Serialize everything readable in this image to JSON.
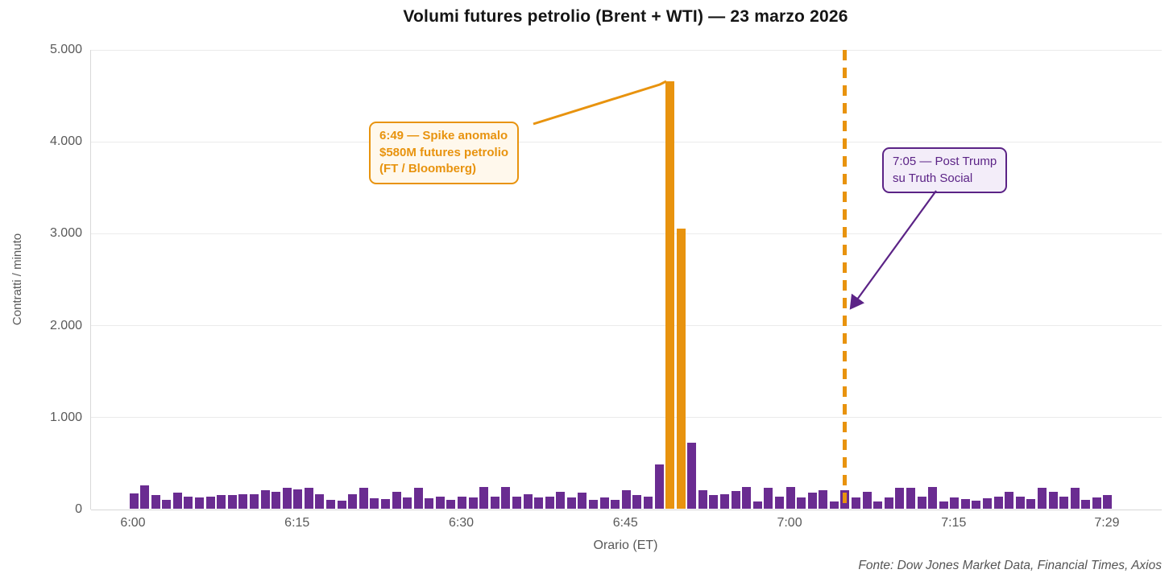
{
  "source_note": "Fonte: Dow Jones Market Data, Financial Times, Axios",
  "colors": {
    "bar_purple": "#6A2C91",
    "accent_orange": "#E8930E",
    "annotation_purple": "#5B2386",
    "annotation_orange_bg": "#FFF8EC",
    "annotation_purple_bg": "#F3EDF9",
    "axis_text": "#595959",
    "title_text": "#151515"
  },
  "annotations": {
    "spike": {
      "lines": [
        "6:49 — Spike anomalo",
        "$580M futures petrolio",
        "(FT / Bloomberg)"
      ],
      "color": "#E8930E"
    },
    "trump_post": {
      "lines": [
        "7:05 — Post Trump",
        "su Truth Social"
      ],
      "color": "#5B2386"
    }
  },
  "chart_data": {
    "type": "bar",
    "title": "Volumi futures petrolio (Brent + WTI) — 23 marzo 2026",
    "xlabel": "Orario (ET)",
    "ylabel": "Contratti / minuto",
    "ylim": [
      0,
      5000
    ],
    "grid": true,
    "legend": "none",
    "x_unit": "minutes from 6:00 ET",
    "y_ticks": [
      {
        "value": 5000,
        "label": "5.000"
      },
      {
        "value": 4000,
        "label": "4.000"
      },
      {
        "value": 3000,
        "label": "3.000"
      },
      {
        "value": 2000,
        "label": "2.000"
      },
      {
        "value": 1000,
        "label": "1.000"
      },
      {
        "value": 0,
        "label": "0"
      }
    ],
    "x_ticks": [
      {
        "minute": 0,
        "label": "6:00"
      },
      {
        "minute": 15,
        "label": "6:15"
      },
      {
        "minute": 30,
        "label": "6:30"
      },
      {
        "minute": 45,
        "label": "6:45"
      },
      {
        "minute": 60,
        "label": "7:00"
      },
      {
        "minute": 75,
        "label": "7:15"
      },
      {
        "minute": 89,
        "label": "7:29"
      }
    ],
    "series": [
      {
        "name": "Volumi futures petrolio (contratti/minuto)",
        "values": [
          170,
          250,
          150,
          95,
          175,
          135,
          120,
          135,
          150,
          150,
          160,
          155,
          200,
          180,
          230,
          210,
          225,
          160,
          95,
          90,
          160,
          230,
          115,
          105,
          185,
          125,
          230,
          110,
          130,
          95,
          135,
          125,
          240,
          130,
          240,
          135,
          160,
          125,
          135,
          185,
          120,
          175,
          95,
          125,
          100,
          205,
          150,
          135,
          480,
          4650,
          3050,
          720,
          205,
          150,
          160,
          195,
          240,
          80,
          230,
          135,
          240,
          125,
          175,
          205,
          80,
          205,
          125,
          185,
          80,
          125,
          230,
          230,
          135,
          240,
          80,
          125,
          105,
          90,
          115,
          135,
          180,
          130,
          105,
          225,
          185,
          130,
          225,
          100,
          125,
          150
        ]
      }
    ],
    "highlight_minutes": [
      49,
      50
    ],
    "highlight_color": "#E8930E",
    "bar_color": "#6A2C91",
    "event_line": {
      "minute": 65,
      "time_label": "7:05",
      "style": "dashed",
      "color": "#E8930E"
    }
  }
}
